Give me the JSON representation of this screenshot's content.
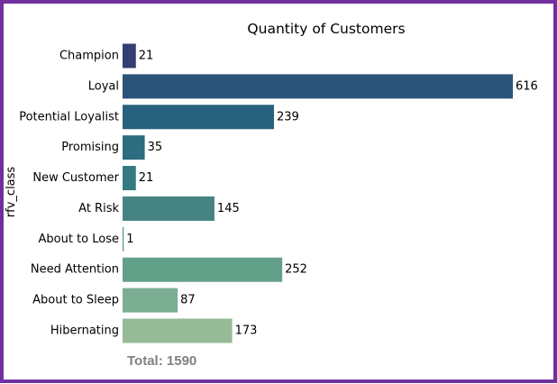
{
  "chart_data": {
    "type": "bar",
    "orientation": "horizontal",
    "title": "Quantity of Customers",
    "xlabel": "",
    "ylabel": "rfv_class",
    "categories": [
      "Champion",
      "Loyal",
      "Potential Loyalist",
      "Promising",
      "New Customer",
      "At Risk",
      "About to Lose",
      "Need Attention",
      "About to Sleep",
      "Hibernating"
    ],
    "values": [
      21,
      616,
      239,
      35,
      21,
      145,
      1,
      252,
      87,
      173
    ],
    "colors": [
      "#323f70",
      "#2c5378",
      "#28617d",
      "#2e6c80",
      "#347a80",
      "#468383",
      "#569387",
      "#63a08a",
      "#7bae93",
      "#96bb96"
    ],
    "xlim": [
      0,
      640
    ],
    "grid": false,
    "legend": "none",
    "total_label": "Total: 1590"
  },
  "frame_color": "#7030a0"
}
